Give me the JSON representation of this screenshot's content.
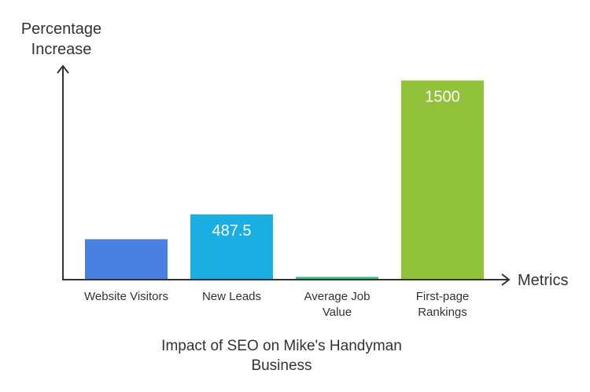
{
  "chart_data": {
    "type": "bar",
    "title": "Impact of SEO on Mike's Handyman Business",
    "title_lines": [
      "Impact of SEO on Mike's Handyman",
      "Business"
    ],
    "xlabel": "Metrics",
    "ylabel_lines": [
      "Percentage",
      "Increase"
    ],
    "categories": [
      "Website Visitors",
      "New Leads",
      "Average Job Value",
      "First-page Rankings"
    ],
    "category_lines": [
      [
        "Website Visitors"
      ],
      [
        "New Leads"
      ],
      [
        "Average Job",
        "Value"
      ],
      [
        "First-page",
        "Rankings"
      ]
    ],
    "values": [
      300,
      487.5,
      15,
      1500
    ],
    "data_labels": [
      "",
      "487.5",
      "",
      "1500"
    ],
    "colors": [
      "#4a80e0",
      "#1aaee3",
      "#2ebf7a",
      "#92c13a"
    ],
    "ylim": [
      0,
      1560
    ],
    "grid": false
  }
}
